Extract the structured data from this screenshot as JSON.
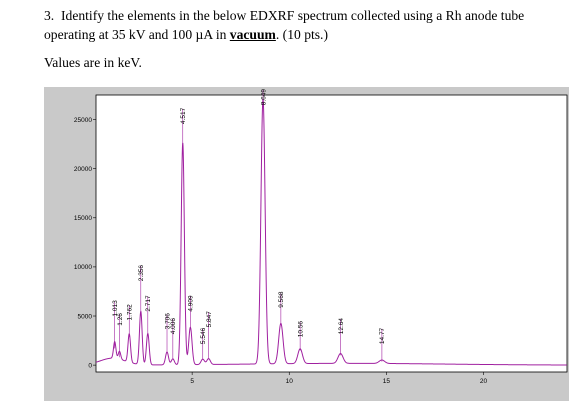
{
  "question": {
    "number": "3.",
    "text_before": "Identify the elements in the below EDXRF spectrum collected using a Rh anode tube operating at 35 kV and 100 µA in ",
    "emphasis": "vacuum",
    "text_after": ".  (10 pts.)"
  },
  "units_note": "Values are in keV.",
  "chart_data": {
    "type": "line",
    "title": "",
    "xlabel": "",
    "ylabel": "",
    "xlim": [
      0.05,
      24.3
    ],
    "ylim": [
      -700,
      27500
    ],
    "x_ticks": [
      5,
      10,
      15,
      20
    ],
    "y_ticks": [
      0,
      5000,
      10000,
      15000,
      20000,
      25000
    ],
    "x_tick_labels": [
      "5",
      "10",
      "15",
      "20"
    ],
    "y_tick_labels": [
      "0",
      "5000",
      "10000",
      "15000",
      "20000",
      "25000"
    ],
    "grid": false,
    "line_color": "#a020a0",
    "background_color": "#ffffff",
    "frame_color": "#c9c9c9",
    "peaks": [
      {
        "label": "1.013",
        "energy": 1.013,
        "counts": 1700
      },
      {
        "label": "1.26",
        "energy": 1.26,
        "counts": 800
      },
      {
        "label": "1.762",
        "energy": 1.762,
        "counts": 2900
      },
      {
        "label": "2.356",
        "energy": 2.356,
        "counts": 5400
      },
      {
        "label": "2.717",
        "energy": 2.717,
        "counts": 3200
      },
      {
        "label": "3.706",
        "energy": 3.706,
        "counts": 1300
      },
      {
        "label": "4.006",
        "energy": 4.006,
        "counts": 600
      },
      {
        "label": "4.517",
        "energy": 4.517,
        "counts": 22600
      },
      {
        "label": "4.909",
        "energy": 4.909,
        "counts": 3800
      },
      {
        "label": "5.546",
        "energy": 5.546,
        "counts": 550
      },
      {
        "label": "5.847",
        "energy": 5.847,
        "counts": 600
      },
      {
        "label": "8.649",
        "energy": 8.649,
        "counts": 27000
      },
      {
        "label": "9.568",
        "energy": 9.568,
        "counts": 4100
      },
      {
        "label": "10.56",
        "energy": 10.56,
        "counts": 1500
      },
      {
        "label": "12.64",
        "energy": 12.64,
        "counts": 1000
      },
      {
        "label": "14.77",
        "energy": 14.77,
        "counts": 350
      }
    ]
  }
}
